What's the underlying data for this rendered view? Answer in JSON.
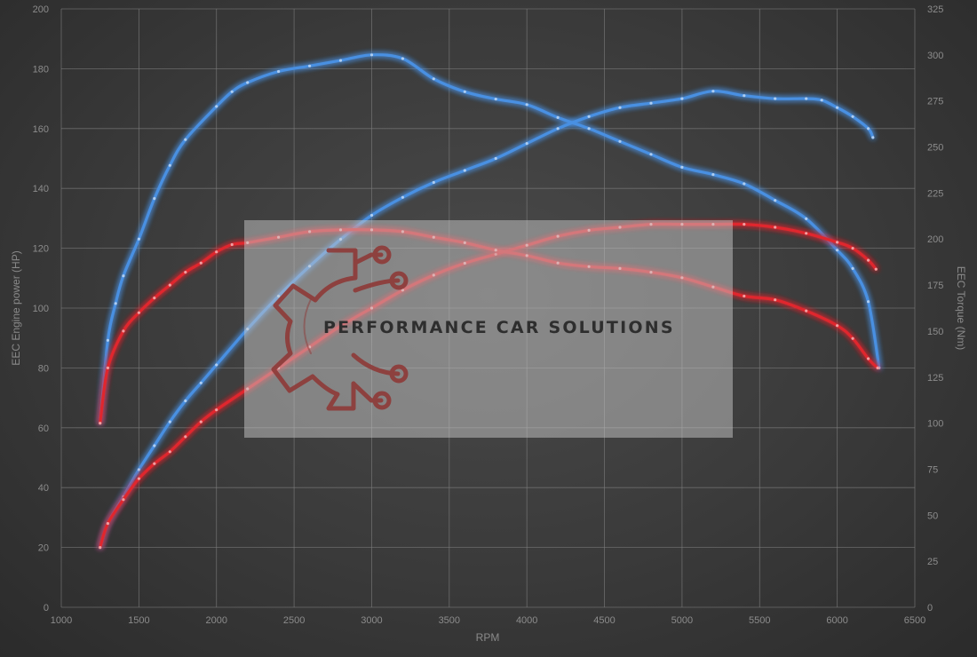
{
  "chart_data": {
    "type": "line",
    "title": "",
    "xlabel": "RPM",
    "ylabel_left": "EEC Engine power (HP)",
    "ylabel_right": "EEC Torque (Nm)",
    "xlim": [
      1000,
      6500
    ],
    "ylim_left": [
      0,
      200
    ],
    "ylim_right": [
      0,
      325
    ],
    "x_ticks": [
      1000,
      1500,
      2000,
      2500,
      3000,
      3500,
      4000,
      4500,
      5000,
      5500,
      6000,
      6500
    ],
    "y_left_ticks": [
      0,
      20,
      40,
      60,
      80,
      100,
      120,
      140,
      160,
      180,
      200
    ],
    "y_right_ticks": [
      0,
      25,
      50,
      75,
      100,
      125,
      150,
      175,
      200,
      225,
      250,
      275,
      300,
      325
    ],
    "grid": true,
    "legend": "none",
    "series": [
      {
        "key": "tuned_power",
        "axis": "left",
        "color": "#4a90e2",
        "x": [
          1250,
          1300,
          1400,
          1500,
          1600,
          1700,
          1800,
          1900,
          2000,
          2200,
          2400,
          2600,
          2800,
          3000,
          3200,
          3400,
          3600,
          3800,
          4000,
          4200,
          4400,
          4600,
          4800,
          5000,
          5200,
          5400,
          5600,
          5800,
          5900,
          6000,
          6100,
          6200,
          6230
        ],
        "y": [
          20,
          28,
          37,
          46,
          54,
          62,
          69,
          75,
          81,
          93,
          104,
          114,
          123,
          131,
          137,
          142,
          146,
          150,
          155,
          160,
          164,
          167,
          168.5,
          170,
          172.5,
          171,
          170,
          170,
          169.5,
          167,
          164,
          160,
          157
        ]
      },
      {
        "key": "tuned_torque",
        "axis": "right",
        "color": "#4a90e2",
        "x": [
          1250,
          1300,
          1350,
          1400,
          1500,
          1600,
          1700,
          1800,
          2000,
          2100,
          2200,
          2400,
          2600,
          2800,
          3000,
          3200,
          3400,
          3600,
          3800,
          4000,
          4200,
          4400,
          4600,
          4800,
          5000,
          5200,
          5400,
          5600,
          5800,
          6000,
          6100,
          6200,
          6270
        ],
        "y": [
          100,
          145,
          165,
          180,
          200,
          222,
          240,
          254,
          272,
          280,
          285,
          291,
          294,
          297,
          300,
          298,
          287,
          280,
          276,
          273,
          266,
          260,
          253,
          246,
          239,
          235,
          230,
          221,
          211,
          194,
          184,
          166,
          130
        ]
      },
      {
        "key": "stock_power",
        "axis": "left",
        "color": "#e0272d",
        "x": [
          1250,
          1300,
          1400,
          1500,
          1600,
          1700,
          1800,
          1900,
          2000,
          2200,
          2400,
          2600,
          2800,
          3000,
          3200,
          3400,
          3600,
          3800,
          4000,
          4200,
          4400,
          4600,
          4800,
          5000,
          5200,
          5400,
          5600,
          5800,
          6000,
          6100,
          6200,
          6250
        ],
        "y": [
          20,
          28,
          36,
          43,
          48,
          52,
          57,
          62,
          66,
          73,
          80,
          87,
          94,
          100,
          106,
          111,
          115,
          118,
          121,
          124,
          126,
          127,
          128,
          128,
          128,
          128,
          127,
          125,
          122,
          120,
          116,
          113
        ]
      },
      {
        "key": "stock_torque",
        "axis": "right",
        "color": "#e0272d",
        "x": [
          1250,
          1300,
          1400,
          1500,
          1600,
          1700,
          1800,
          1900,
          2000,
          2100,
          2200,
          2400,
          2600,
          2800,
          3000,
          3200,
          3400,
          3600,
          3800,
          4000,
          4200,
          4400,
          4600,
          4800,
          5000,
          5200,
          5400,
          5600,
          5800,
          6000,
          6100,
          6200,
          6260
        ],
        "y": [
          100,
          130,
          150,
          160,
          168,
          175,
          182,
          187,
          193,
          197,
          198,
          201,
          204,
          205,
          205,
          204,
          201,
          198,
          194,
          191,
          187,
          185,
          184,
          182,
          179,
          174,
          169,
          167,
          161,
          153,
          146,
          135,
          130
        ]
      }
    ]
  },
  "watermark": {
    "text": "PERFORMANCE CAR SOLUTIONS",
    "logo": "gear-circuit-logo"
  }
}
